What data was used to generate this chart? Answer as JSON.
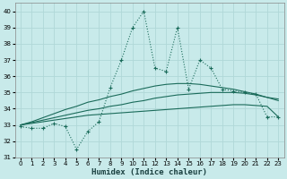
{
  "xlabel": "Humidex (Indice chaleur)",
  "bg_color": "#c8eaea",
  "grid_color": "#b0d8d8",
  "line_color": "#1a6b5a",
  "xlim": [
    -0.5,
    23.5
  ],
  "ylim": [
    31,
    40.5
  ],
  "yticks": [
    31,
    32,
    33,
    34,
    35,
    36,
    37,
    38,
    39,
    40
  ],
  "xticks": [
    0,
    1,
    2,
    3,
    4,
    5,
    6,
    7,
    8,
    9,
    10,
    11,
    12,
    13,
    14,
    15,
    16,
    17,
    18,
    19,
    20,
    21,
    22,
    23
  ],
  "series1_x": [
    0,
    1,
    2,
    3,
    4,
    5,
    6,
    7,
    8,
    9,
    10,
    11,
    12,
    13,
    14,
    15,
    16,
    17,
    18,
    19,
    20,
    21,
    22,
    23
  ],
  "series1_y": [
    32.9,
    32.8,
    32.8,
    33.1,
    32.9,
    31.5,
    32.6,
    33.2,
    35.3,
    37.0,
    39.0,
    40.0,
    36.5,
    36.3,
    39.0,
    35.2,
    37.0,
    36.5,
    35.2,
    35.1,
    35.0,
    34.9,
    33.5,
    33.5
  ],
  "trend1_x": [
    0,
    1,
    2,
    3,
    4,
    5,
    6,
    7,
    8,
    9,
    10,
    11,
    12,
    13,
    14,
    15,
    16,
    17,
    18,
    19,
    20,
    21,
    22,
    23
  ],
  "trend1_y": [
    33.0,
    33.1,
    33.2,
    33.3,
    33.4,
    33.5,
    33.6,
    33.65,
    33.7,
    33.75,
    33.8,
    33.85,
    33.9,
    33.95,
    34.0,
    34.05,
    34.1,
    34.15,
    34.2,
    34.25,
    34.25,
    34.2,
    34.15,
    33.5
  ],
  "trend2_x": [
    0,
    1,
    2,
    3,
    4,
    5,
    6,
    7,
    8,
    9,
    10,
    11,
    12,
    13,
    14,
    15,
    16,
    17,
    18,
    19,
    20,
    21,
    22,
    23
  ],
  "trend2_y": [
    33.0,
    33.15,
    33.3,
    33.45,
    33.6,
    33.75,
    33.9,
    34.0,
    34.15,
    34.25,
    34.4,
    34.5,
    34.65,
    34.75,
    34.85,
    34.9,
    34.95,
    35.0,
    35.0,
    35.0,
    34.95,
    34.85,
    34.7,
    34.6
  ],
  "trend3_x": [
    0,
    1,
    2,
    3,
    4,
    5,
    6,
    7,
    8,
    9,
    10,
    11,
    12,
    13,
    14,
    15,
    16,
    17,
    18,
    19,
    20,
    21,
    22,
    23
  ],
  "trend3_y": [
    33.0,
    33.2,
    33.45,
    33.7,
    33.95,
    34.15,
    34.4,
    34.55,
    34.75,
    34.9,
    35.1,
    35.25,
    35.4,
    35.5,
    35.55,
    35.55,
    35.5,
    35.4,
    35.3,
    35.2,
    35.05,
    34.9,
    34.7,
    34.5
  ]
}
